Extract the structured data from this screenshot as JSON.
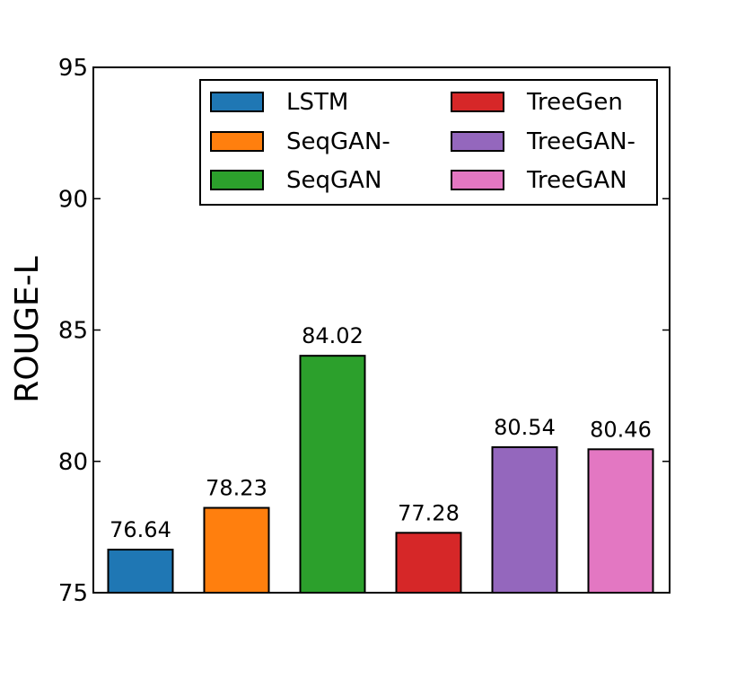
{
  "chart_data": {
    "type": "bar",
    "title": "",
    "xlabel": "",
    "ylabel": "ROUGE-L",
    "ylim": [
      75,
      95
    ],
    "yticks": [
      75,
      80,
      85,
      90,
      95
    ],
    "legend_position": "top-right",
    "categories": [
      "LSTM",
      "SeqGAN-",
      "SeqGAN",
      "TreeGen",
      "TreeGAN-",
      "TreeGAN"
    ],
    "values": [
      76.64,
      78.23,
      84.02,
      77.28,
      80.54,
      80.46
    ],
    "data_labels": [
      "76.64",
      "78.23",
      "84.02",
      "77.28",
      "80.54",
      "80.46"
    ],
    "colors": [
      "#1f77b4",
      "#ff7f0e",
      "#2ca02c",
      "#d62728",
      "#9467bd",
      "#e377c2"
    ]
  }
}
